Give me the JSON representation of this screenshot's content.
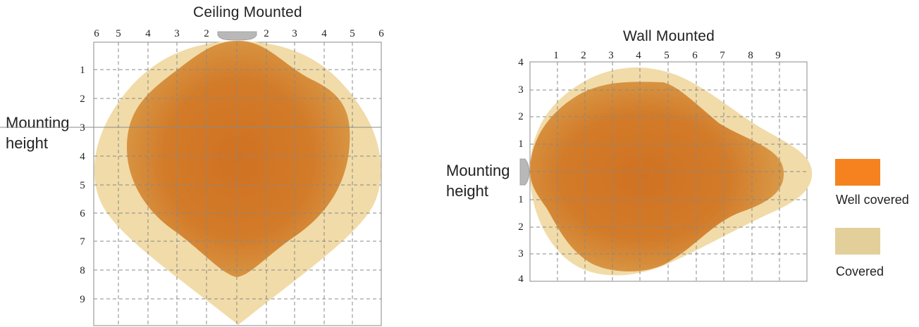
{
  "ceiling": {
    "title": "Ceiling Mounted",
    "mounting_label_line1": "Mounting",
    "mounting_label_line2": "height",
    "top_ticks": [
      "6",
      "5",
      "4",
      "3",
      "2",
      "2",
      "3",
      "4",
      "5",
      "6"
    ],
    "left_ticks": [
      "1",
      "2",
      "3",
      "4",
      "5",
      "6",
      "7",
      "8",
      "9"
    ]
  },
  "wall": {
    "title": "Wall Mounted",
    "mounting_label_line1": "Mounting",
    "mounting_label_line2": "height",
    "top_ticks": [
      "1",
      "2",
      "3",
      "4",
      "5",
      "6",
      "7",
      "8",
      "9"
    ],
    "left_ticks": [
      "4",
      "3",
      "2",
      "1",
      "1",
      "2",
      "3",
      "4"
    ]
  },
  "legend": {
    "well_covered": {
      "label": "Well covered",
      "color": "#f5821f"
    },
    "covered": {
      "label": "Covered",
      "color": "#e3cf9a"
    }
  },
  "colors": {
    "inner_zone": "#d27d2a",
    "outer_zone": "#f1dba8",
    "grid": "#888888",
    "sensor": "#b9b9b9"
  }
}
